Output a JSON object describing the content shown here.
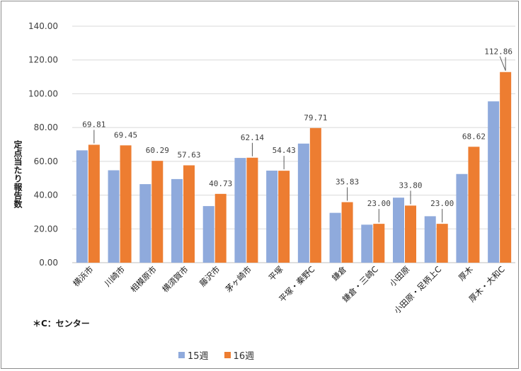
{
  "chart_data": {
    "type": "bar",
    "ylabel": "定点当たり報告数",
    "ylim": [
      0,
      140
    ],
    "yticks": [
      "0.00",
      "20.00",
      "40.00",
      "60.00",
      "80.00",
      "100.00",
      "120.00",
      "140.00"
    ],
    "grid": true,
    "legend_position": "bottom",
    "note": "＊C：センター",
    "categories": [
      "横浜市",
      "川崎市",
      "相模原市",
      "横須賀市",
      "藤沢市",
      "茅ヶ崎市",
      "平塚",
      "平塚・秦野C",
      "鎌倉",
      "鎌倉・三崎C",
      "小田原",
      "小田原・足柄上C",
      "厚木",
      "厚木・大和C"
    ],
    "series": [
      {
        "name": "15週",
        "color": "#8faadc",
        "values": [
          66.5,
          54.7,
          46.5,
          49.5,
          33.5,
          62.0,
          54.5,
          70.5,
          29.5,
          22.5,
          38.5,
          27.5,
          52.5,
          95.5
        ]
      },
      {
        "name": "16週",
        "color": "#ed7d31",
        "values": [
          69.81,
          69.45,
          60.29,
          57.63,
          40.73,
          62.14,
          54.43,
          79.71,
          35.83,
          23.0,
          33.8,
          23.0,
          68.62,
          112.86
        ]
      }
    ],
    "data_labels": [
      "69.81",
      "69.45",
      "60.29",
      "57.63",
      "40.73",
      "62.14",
      "54.43",
      "79.71",
      "35.83",
      "23.00",
      "33.80",
      "23.00",
      "68.62",
      "112.86"
    ]
  }
}
